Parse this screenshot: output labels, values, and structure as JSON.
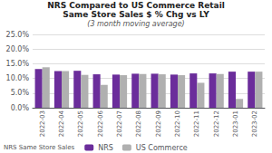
{
  "chart_data": {
    "type": "bar",
    "title": "NRS Compared to US Commerce Retail\nSame Store Sales $ % Chg vs LY",
    "subtitle": "(3 month moving average)",
    "annotations": [
      "NRS Same Store Sales"
    ],
    "categories": [
      "2022-03",
      "2022-04",
      "2022-05",
      "2022-06",
      "2022-07",
      "2022-08",
      "2022-09",
      "2022-10",
      "2022-11",
      "2022-12",
      "2023-01",
      "2023-02"
    ],
    "series": [
      {
        "name": "NRS",
        "color": "#6B2D9B",
        "values": [
          13.2,
          12.5,
          12.6,
          11.4,
          11.3,
          11.6,
          11.6,
          11.3,
          11.7,
          11.7,
          12.3,
          12.3
        ]
      },
      {
        "name": "US Commerce",
        "color": "#B0B0B0",
        "values": [
          13.8,
          12.5,
          11.2,
          7.8,
          11.1,
          11.5,
          11.4,
          11.1,
          8.5,
          11.5,
          3.0,
          12.3
        ]
      }
    ],
    "ylim": [
      0.0,
      25.0
    ],
    "yticks": [
      {
        "value": 0.0,
        "label": "0.0%"
      },
      {
        "value": 5.0,
        "label": "5.0%"
      },
      {
        "value": 10.0,
        "label": "10.0%"
      },
      {
        "value": 15.0,
        "label": "15.0%"
      },
      {
        "value": 20.0,
        "label": "20.0%"
      },
      {
        "value": 25.0,
        "label": "25.0%"
      }
    ],
    "grid": true,
    "legend": "bottom"
  }
}
